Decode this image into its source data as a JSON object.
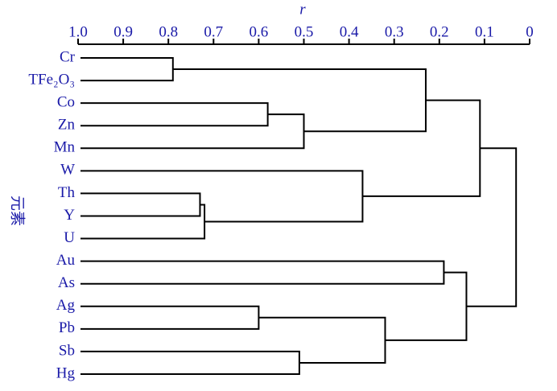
{
  "chart_data": {
    "type": "dendrogram",
    "title": "r",
    "y_label": "元素",
    "labels": [
      "Cr",
      "TFe₂O₃",
      "Co",
      "Zn",
      "Mn",
      "W",
      "Th",
      "Y",
      "U",
      "Au",
      "As",
      "Ag",
      "Pb",
      "Sb",
      "Hg"
    ],
    "merges": [
      {
        "left": 0,
        "right": 1,
        "height": 0.79
      },
      {
        "left": 2,
        "right": 3,
        "height": 0.58
      },
      {
        "left": 16,
        "right": 4,
        "height": 0.5
      },
      {
        "left": 15,
        "right": 17,
        "height": 0.23
      },
      {
        "left": 6,
        "right": 7,
        "height": 0.73
      },
      {
        "left": 19,
        "right": 8,
        "height": 0.72
      },
      {
        "left": 5,
        "right": 20,
        "height": 0.37
      },
      {
        "left": 18,
        "right": 21,
        "height": 0.11
      },
      {
        "left": 9,
        "right": 10,
        "height": 0.19
      },
      {
        "left": 11,
        "right": 12,
        "height": 0.6
      },
      {
        "left": 13,
        "right": 14,
        "height": 0.51
      },
      {
        "left": 24,
        "right": 25,
        "height": 0.32
      },
      {
        "left": 23,
        "right": 26,
        "height": 0.14
      },
      {
        "left": 22,
        "right": 27,
        "height": 0.03
      }
    ],
    "xlim": [
      1.0,
      0
    ],
    "xticks": [
      {
        "value": 1.0,
        "label": "1.0"
      },
      0.9,
      0.8,
      0.7,
      0.6,
      0.5,
      0.4,
      0.3,
      0.2,
      0.1,
      0
    ]
  }
}
